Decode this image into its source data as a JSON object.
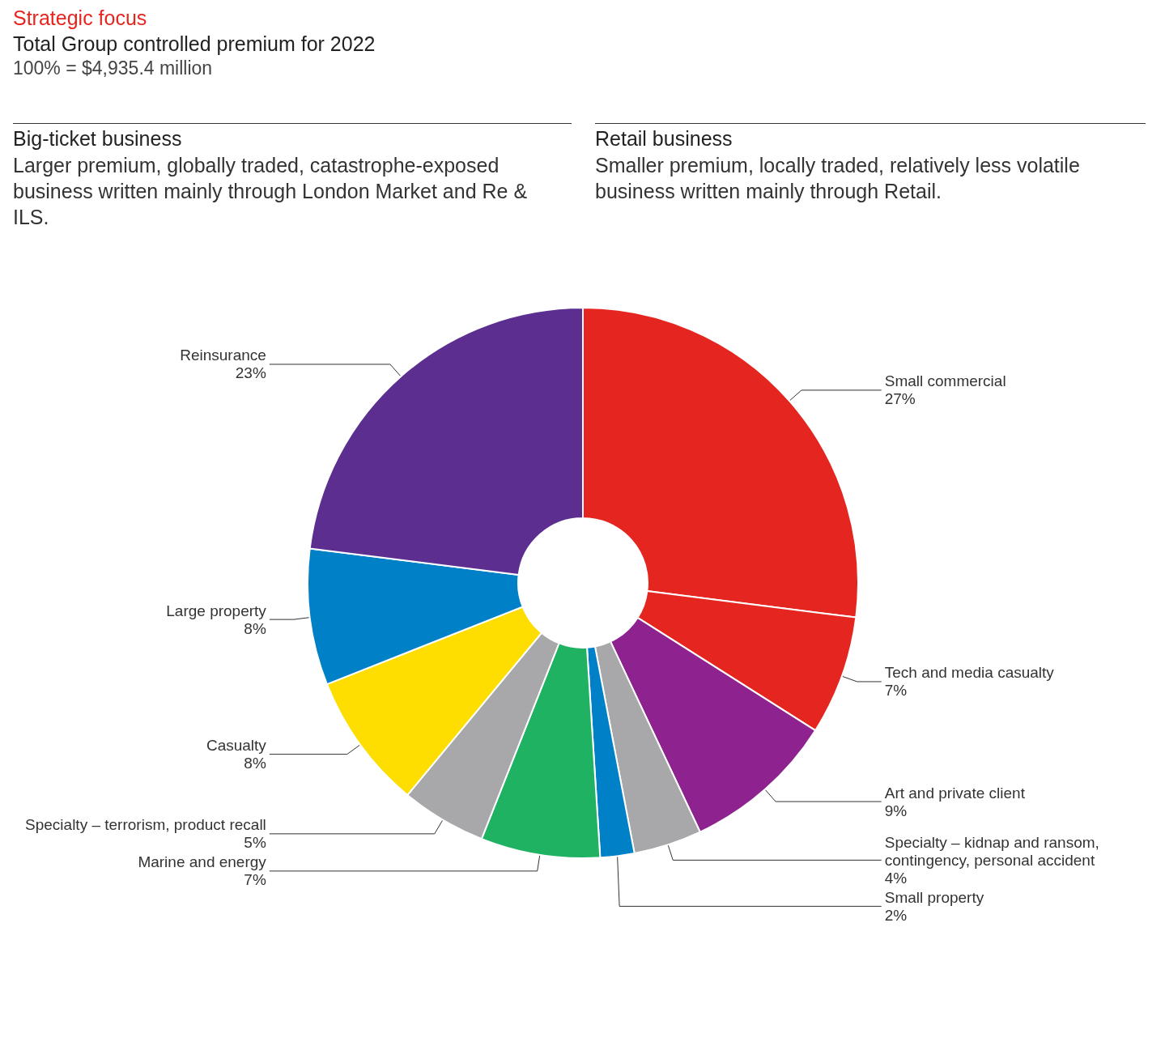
{
  "chart_data": {
    "type": "donut",
    "title": "Strategic focus",
    "subtitle": "Total Group controlled premium for 2022",
    "annotations": [
      "100% = $4,935.4 million",
      "Big-ticket business",
      "Larger premium, globally traded, catastrophe-exposed business written mainly through London Market and Re & ILS.",
      "Retail business",
      "Smaller premium, locally traded, relatively less volatile business written mainly through Retail."
    ],
    "categories": [
      "Small commercial",
      "Tech and media casualty",
      "Art and private client",
      "Specialty – kidnap and ransom, contingency, personal accident",
      "Small property",
      "Marine and energy",
      "Specialty – terrorism, product recall",
      "Casualty",
      "Large property",
      "Reinsurance"
    ],
    "values": [
      27,
      7,
      9,
      4,
      2,
      7,
      5,
      8,
      8,
      23
    ],
    "colors": [
      "#e52620",
      "#e52620",
      "#8e2390",
      "#a8a8aa",
      "#0080c6",
      "#1fb262",
      "#a8a8aa",
      "#fedd00",
      "#0080c6",
      "#5b2e90"
    ],
    "value_labels": [
      "27%",
      "7%",
      "9%",
      "4%",
      "2%",
      "7%",
      "5%",
      "8%",
      "8%",
      "23%"
    ]
  }
}
